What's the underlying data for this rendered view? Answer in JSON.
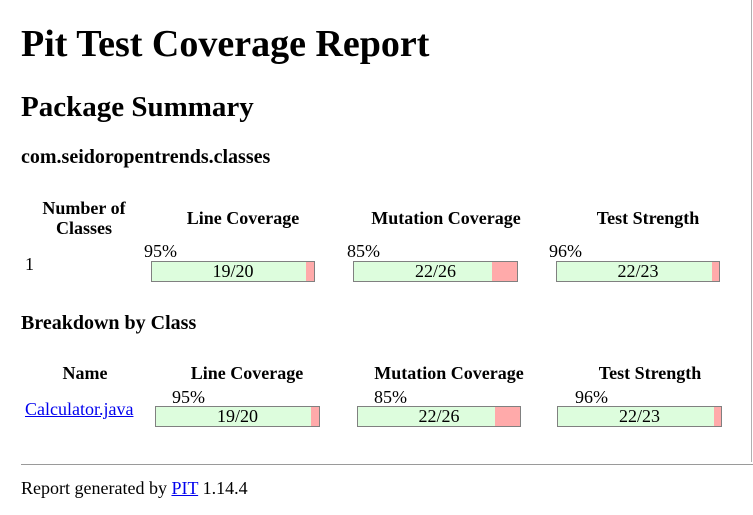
{
  "title": "Pit Test Coverage Report",
  "package_summary": {
    "heading": "Package Summary",
    "package_name": "com.seidoropentrends.classes",
    "columns": {
      "num_classes": "Number of Classes",
      "line": "Line Coverage",
      "mutation": "Mutation Coverage",
      "strength": "Test Strength"
    },
    "row": {
      "num_classes": "1",
      "line": {
        "percent": "95%",
        "ratio": "19/20",
        "fraction": 0.95
      },
      "mutation": {
        "percent": "85%",
        "ratio": "22/26",
        "fraction": 0.846
      },
      "strength": {
        "percent": "96%",
        "ratio": "22/23",
        "fraction": 0.957
      }
    }
  },
  "breakdown": {
    "heading": "Breakdown by Class",
    "columns": {
      "name": "Name",
      "line": "Line Coverage",
      "mutation": "Mutation Coverage",
      "strength": "Test Strength"
    },
    "row": {
      "name": "Calculator.java",
      "line": {
        "percent": "95%",
        "ratio": "19/20",
        "fraction": 0.95
      },
      "mutation": {
        "percent": "85%",
        "ratio": "22/26",
        "fraction": 0.846
      },
      "strength": {
        "percent": "96%",
        "ratio": "22/23",
        "fraction": 0.957
      }
    }
  },
  "footer": {
    "prefix": "Report generated by",
    "link": "PIT",
    "version": "1.14.4"
  },
  "colors": {
    "covered": "#ddfddd",
    "uncovered": "#ffaaaa",
    "link": "#0000ee"
  }
}
